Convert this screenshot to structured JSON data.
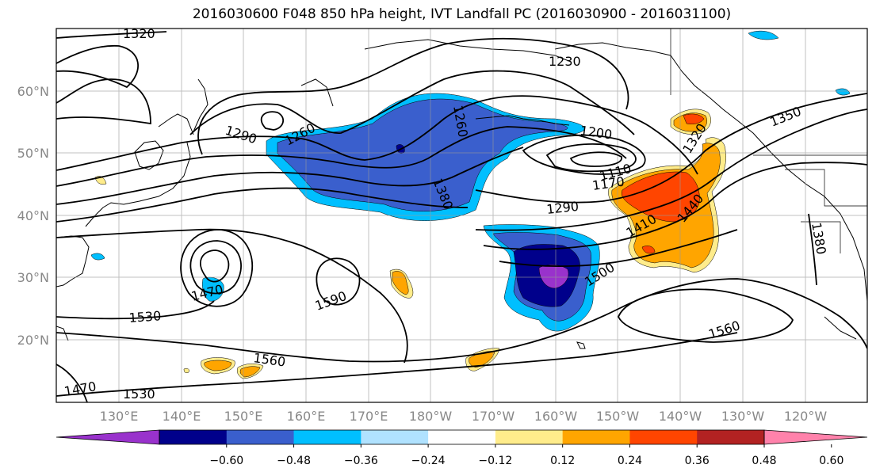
{
  "title": "2016030600 F048 850 hPa height, IVT Landfall PC (2016030900 - 2016031100)",
  "lat_labels": [
    "60°N",
    "50°N",
    "40°N",
    "30°N",
    "20°N"
  ],
  "lon_labels": [
    "130°E",
    "140°E",
    "150°E",
    "160°E",
    "170°E",
    "180°W",
    "170°W",
    "160°W",
    "150°W",
    "140°W",
    "130°W",
    "120°W"
  ],
  "contour_labels": [
    "1320",
    "1230",
    "1260",
    "1290",
    "1260",
    "1200",
    "1350",
    "1320",
    "1110",
    "1170",
    "1380",
    "1290",
    "1410",
    "1440",
    "1380",
    "1470",
    "1500",
    "1590",
    "1530",
    "1560",
    "1560",
    "1530",
    "1470"
  ],
  "colorbar": {
    "ticks": [
      "−0.60",
      "−0.48",
      "−0.36",
      "−0.24",
      "−0.12",
      "0.12",
      "0.24",
      "0.36",
      "0.48",
      "0.60"
    ],
    "colors": [
      "#9932cc",
      "#00008b",
      "#3a5fcd",
      "#00bfff",
      "#b0e2ff",
      "#ffffff",
      "#ffec8b",
      "#ffa500",
      "#ff4500",
      "#b22222",
      "#ff82ab"
    ]
  },
  "shading_colors": {
    "neg_light": "#00bfff",
    "neg_mid": "#3a5fcd",
    "neg_dark": "#00008b",
    "neg_min": "#9932cc",
    "pos_light": "#ffec8b",
    "pos_mid": "#ffa500",
    "pos_high": "#ff4500",
    "pos_max": "#b22222"
  }
}
